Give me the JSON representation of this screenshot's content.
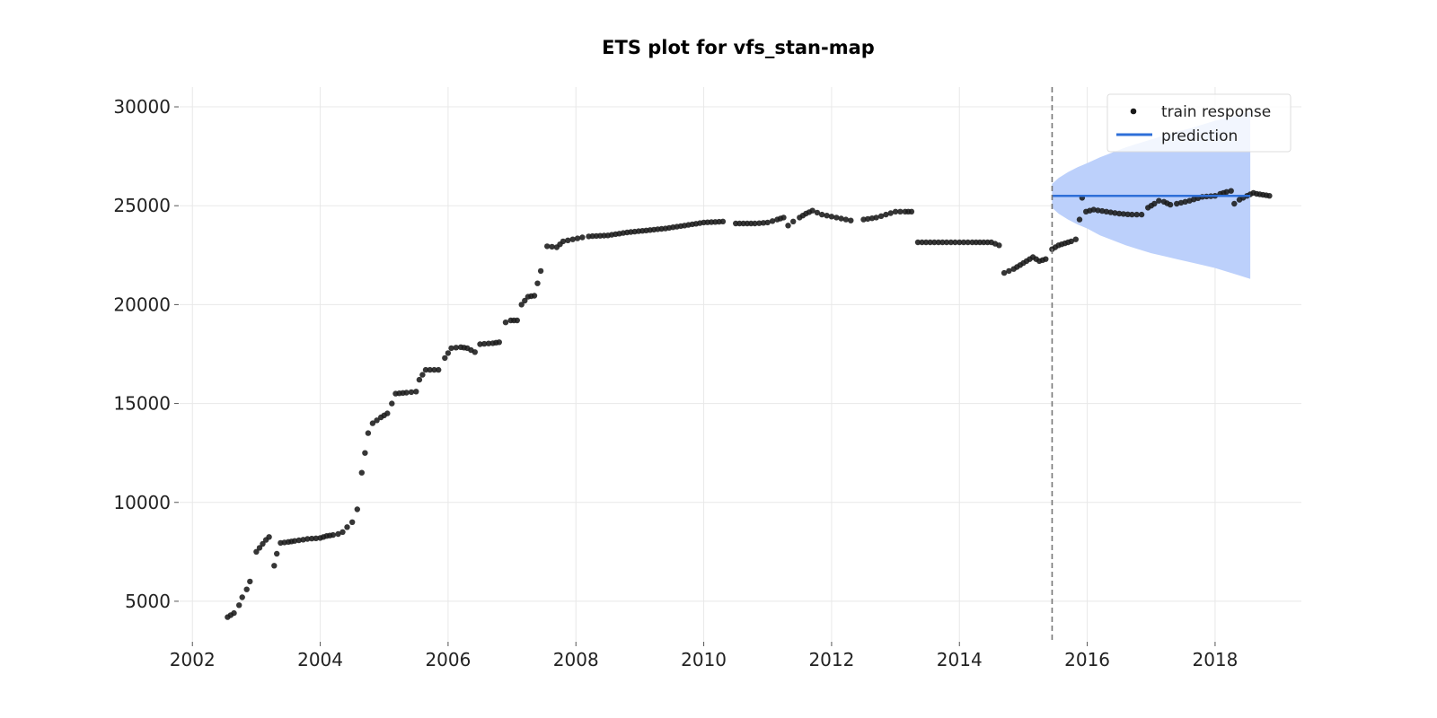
{
  "chart_data": {
    "type": "scatter",
    "title": "ETS plot for vfs_stan-map",
    "xlabel": "",
    "ylabel": "",
    "x_unit": "year",
    "xlim": [
      2001.8,
      2019.35
    ],
    "ylim": [
      3000,
      31000
    ],
    "x_ticks": [
      2002,
      2004,
      2006,
      2008,
      2010,
      2012,
      2014,
      2016,
      2018
    ],
    "y_ticks": [
      5000,
      10000,
      15000,
      20000,
      25000,
      30000
    ],
    "x_tick_labels": [
      "2002",
      "2004",
      "2006",
      "2008",
      "2010",
      "2012",
      "2014",
      "2016",
      "2018"
    ],
    "y_tick_labels": [
      "5000",
      "10000",
      "15000",
      "20000",
      "25000",
      "30000"
    ],
    "grid": true,
    "legend_position": "top-right",
    "legend": [
      "train response",
      "prediction"
    ],
    "train_end": 2015.45,
    "series": [
      {
        "name": "train response",
        "kind": "scatter",
        "color": "#1a1a1a",
        "segments": [
          [
            [
              2002.55,
              4200
            ],
            [
              2002.65,
              4400
            ],
            [
              2002.73,
              4800
            ],
            [
              2002.78,
              5200
            ],
            [
              2002.85,
              5600
            ],
            [
              2002.9,
              6000
            ]
          ],
          [
            [
              2003.0,
              7500
            ],
            [
              2003.05,
              7700
            ],
            [
              2003.1,
              7900
            ],
            [
              2003.15,
              8100
            ],
            [
              2003.2,
              8250
            ]
          ],
          [
            [
              2003.28,
              6800
            ],
            [
              2003.32,
              7400
            ]
          ],
          [
            [
              2003.38,
              7950
            ],
            [
              2003.5,
              8000
            ],
            [
              2003.6,
              8050
            ],
            [
              2003.8,
              8150
            ],
            [
              2004.0,
              8200
            ],
            [
              2004.1,
              8300
            ],
            [
              2004.2,
              8350
            ],
            [
              2004.28,
              8400
            ]
          ],
          [
            [
              2004.35,
              8500
            ],
            [
              2004.42,
              8750
            ],
            [
              2004.5,
              9000
            ]
          ],
          [
            [
              2004.58,
              9650
            ],
            [
              2004.65,
              11500
            ],
            [
              2004.7,
              12500
            ],
            [
              2004.75,
              13500
            ],
            [
              2004.82,
              14000
            ],
            [
              2004.95,
              14300
            ],
            [
              2005.05,
              14500
            ],
            [
              2005.12,
              15000
            ]
          ],
          [
            [
              2005.18,
              15500
            ],
            [
              2005.35,
              15550
            ],
            [
              2005.5,
              15600
            ],
            [
              2005.55,
              16200
            ],
            [
              2005.65,
              16700
            ],
            [
              2005.85,
              16700
            ]
          ],
          [
            [
              2005.95,
              17300
            ],
            [
              2006.05,
              17800
            ],
            [
              2006.2,
              17850
            ],
            [
              2006.3,
              17800
            ],
            [
              2006.42,
              17600
            ],
            [
              2006.5,
              18000
            ],
            [
              2006.7,
              18050
            ],
            [
              2006.8,
              18100
            ]
          ],
          [
            [
              2006.9,
              19100
            ],
            [
              2006.98,
              19200
            ],
            [
              2007.08,
              19200
            ]
          ],
          [
            [
              2007.15,
              20000
            ],
            [
              2007.25,
              20400
            ],
            [
              2007.35,
              20450
            ],
            [
              2007.45,
              21700
            ]
          ],
          [
            [
              2007.55,
              22950
            ],
            [
              2007.7,
              22900
            ],
            [
              2007.8,
              23200
            ],
            [
              2007.95,
              23300
            ],
            [
              2008.1,
              23400
            ]
          ],
          [
            [
              2008.2,
              23450
            ],
            [
              2008.5,
              23500
            ],
            [
              2008.8,
              23650
            ],
            [
              2009.1,
              23750
            ],
            [
              2009.4,
              23850
            ],
            [
              2009.7,
              24000
            ],
            [
              2010.0,
              24150
            ],
            [
              2010.3,
              24200
            ]
          ],
          [
            [
              2010.5,
              24100
            ],
            [
              2010.8,
              24100
            ],
            [
              2011.0,
              24150
            ],
            [
              2011.15,
              24300
            ],
            [
              2011.25,
              24400
            ],
            [
              2011.32,
              24000
            ],
            [
              2011.4,
              24200
            ]
          ],
          [
            [
              2011.5,
              24400
            ],
            [
              2011.6,
              24600
            ],
            [
              2011.7,
              24750
            ],
            [
              2011.85,
              24550
            ],
            [
              2012.0,
              24450
            ],
            [
              2012.15,
              24350
            ],
            [
              2012.3,
              24250
            ]
          ],
          [
            [
              2012.5,
              24300
            ],
            [
              2012.7,
              24400
            ],
            [
              2012.85,
              24550
            ],
            [
              2013.0,
              24700
            ],
            [
              2013.15,
              24700
            ],
            [
              2013.25,
              24700
            ]
          ],
          [
            [
              2013.35,
              23150
            ],
            [
              2013.8,
              23150
            ],
            [
              2014.2,
              23150
            ],
            [
              2014.5,
              23150
            ],
            [
              2014.62,
              23000
            ]
          ],
          [
            [
              2014.7,
              21600
            ],
            [
              2014.85,
              21800
            ],
            [
              2014.95,
              22000
            ],
            [
              2015.05,
              22200
            ],
            [
              2015.15,
              22400
            ],
            [
              2015.25,
              22200
            ],
            [
              2015.35,
              22300
            ]
          ],
          [
            [
              2015.45,
              22800
            ],
            [
              2015.55,
              23000
            ],
            [
              2015.65,
              23100
            ],
            [
              2015.75,
              23200
            ],
            [
              2015.82,
              23300
            ]
          ],
          [
            [
              2015.88,
              24300
            ],
            [
              2015.92,
              25400
            ]
          ],
          [
            [
              2015.98,
              24700
            ],
            [
              2016.1,
              24800
            ],
            [
              2016.3,
              24700
            ],
            [
              2016.5,
              24600
            ],
            [
              2016.7,
              24550
            ],
            [
              2016.85,
              24550
            ]
          ],
          [
            [
              2016.95,
              24900
            ],
            [
              2017.05,
              25100
            ],
            [
              2017.12,
              25250
            ],
            [
              2017.2,
              25200
            ],
            [
              2017.3,
              25050
            ]
          ],
          [
            [
              2017.4,
              25100
            ],
            [
              2017.6,
              25250
            ],
            [
              2017.8,
              25450
            ],
            [
              2018.0,
              25500
            ]
          ],
          [
            [
              2018.08,
              25600
            ],
            [
              2018.18,
              25700
            ],
            [
              2018.25,
              25750
            ]
          ],
          [
            [
              2018.3,
              25100
            ],
            [
              2018.38,
              25300
            ],
            [
              2018.5,
              25500
            ],
            [
              2018.6,
              25650
            ]
          ],
          [
            [
              2018.65,
              25600
            ],
            [
              2018.75,
              25550
            ],
            [
              2018.85,
              25500
            ]
          ]
        ]
      },
      {
        "name": "prediction",
        "kind": "line",
        "color": "#2e6fd8",
        "x": [
          2015.45,
          2018.55
        ],
        "y": [
          25500,
          25500
        ]
      }
    ],
    "prediction_band": {
      "color": "#bcd0fb",
      "x": [
        2015.45,
        2015.55,
        2015.7,
        2015.85,
        2016.0,
        2016.2,
        2016.4,
        2016.6,
        2016.8,
        2017.0,
        2017.2,
        2017.4,
        2017.6,
        2017.8,
        2018.0,
        2018.2,
        2018.4,
        2018.55
      ],
      "lower": [
        24900,
        24600,
        24300,
        24050,
        23850,
        23500,
        23250,
        23000,
        22800,
        22600,
        22450,
        22300,
        22150,
        22000,
        21850,
        21650,
        21450,
        21300
      ],
      "upper": [
        26100,
        26400,
        26700,
        26950,
        27150,
        27450,
        27700,
        27950,
        28150,
        28350,
        28550,
        28750,
        28900,
        29100,
        29300,
        29450,
        29650,
        29750
      ]
    }
  }
}
